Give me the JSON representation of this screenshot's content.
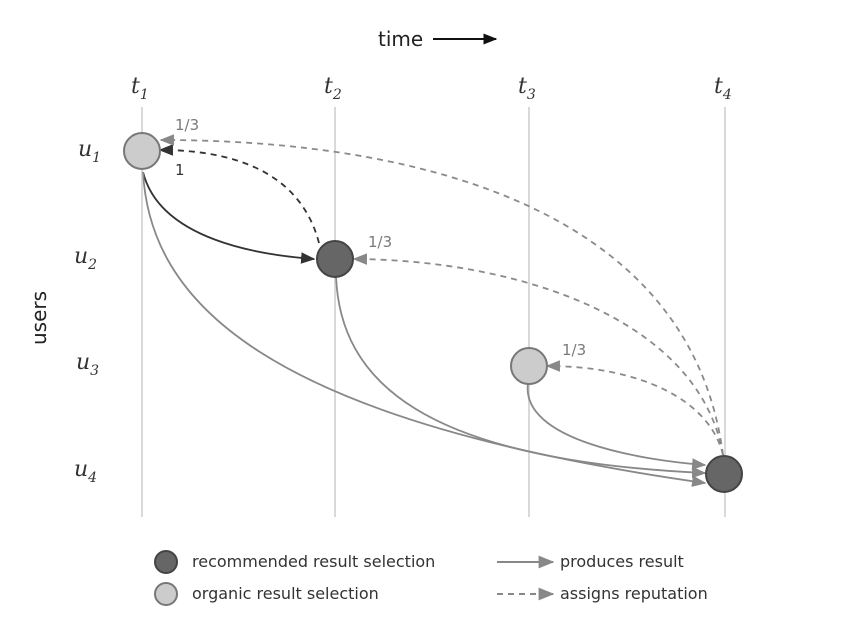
{
  "axis": {
    "time_label": "time",
    "users_label": "users"
  },
  "times": [
    {
      "base": "t",
      "sub": "1"
    },
    {
      "base": "t",
      "sub": "2"
    },
    {
      "base": "t",
      "sub": "3"
    },
    {
      "base": "t",
      "sub": "4"
    }
  ],
  "users": [
    {
      "base": "u",
      "sub": "1"
    },
    {
      "base": "u",
      "sub": "2"
    },
    {
      "base": "u",
      "sub": "3"
    },
    {
      "base": "u",
      "sub": "4"
    }
  ],
  "nodes": [
    {
      "id": "n1",
      "user": 1,
      "time": 1,
      "kind": "organic"
    },
    {
      "id": "n2",
      "user": 2,
      "time": 2,
      "kind": "recommended"
    },
    {
      "id": "n3",
      "user": 3,
      "time": 3,
      "kind": "organic"
    },
    {
      "id": "n4",
      "user": 4,
      "time": 4,
      "kind": "recommended"
    }
  ],
  "edge_weights": {
    "w41": "1/3",
    "w21": "1",
    "w42": "1/3",
    "w43": "1/3"
  },
  "legend": {
    "recommended": "recommended result selection",
    "organic": "organic result selection",
    "produces": "produces result",
    "assigns": "assigns reputation"
  },
  "colors": {
    "recommended_fill": "#666666",
    "organic_fill": "#cccccc",
    "solid_line": "#888888",
    "dark_line": "#333333",
    "dashed_line": "#8a8a8a",
    "gridline": "#d9d9d9"
  }
}
